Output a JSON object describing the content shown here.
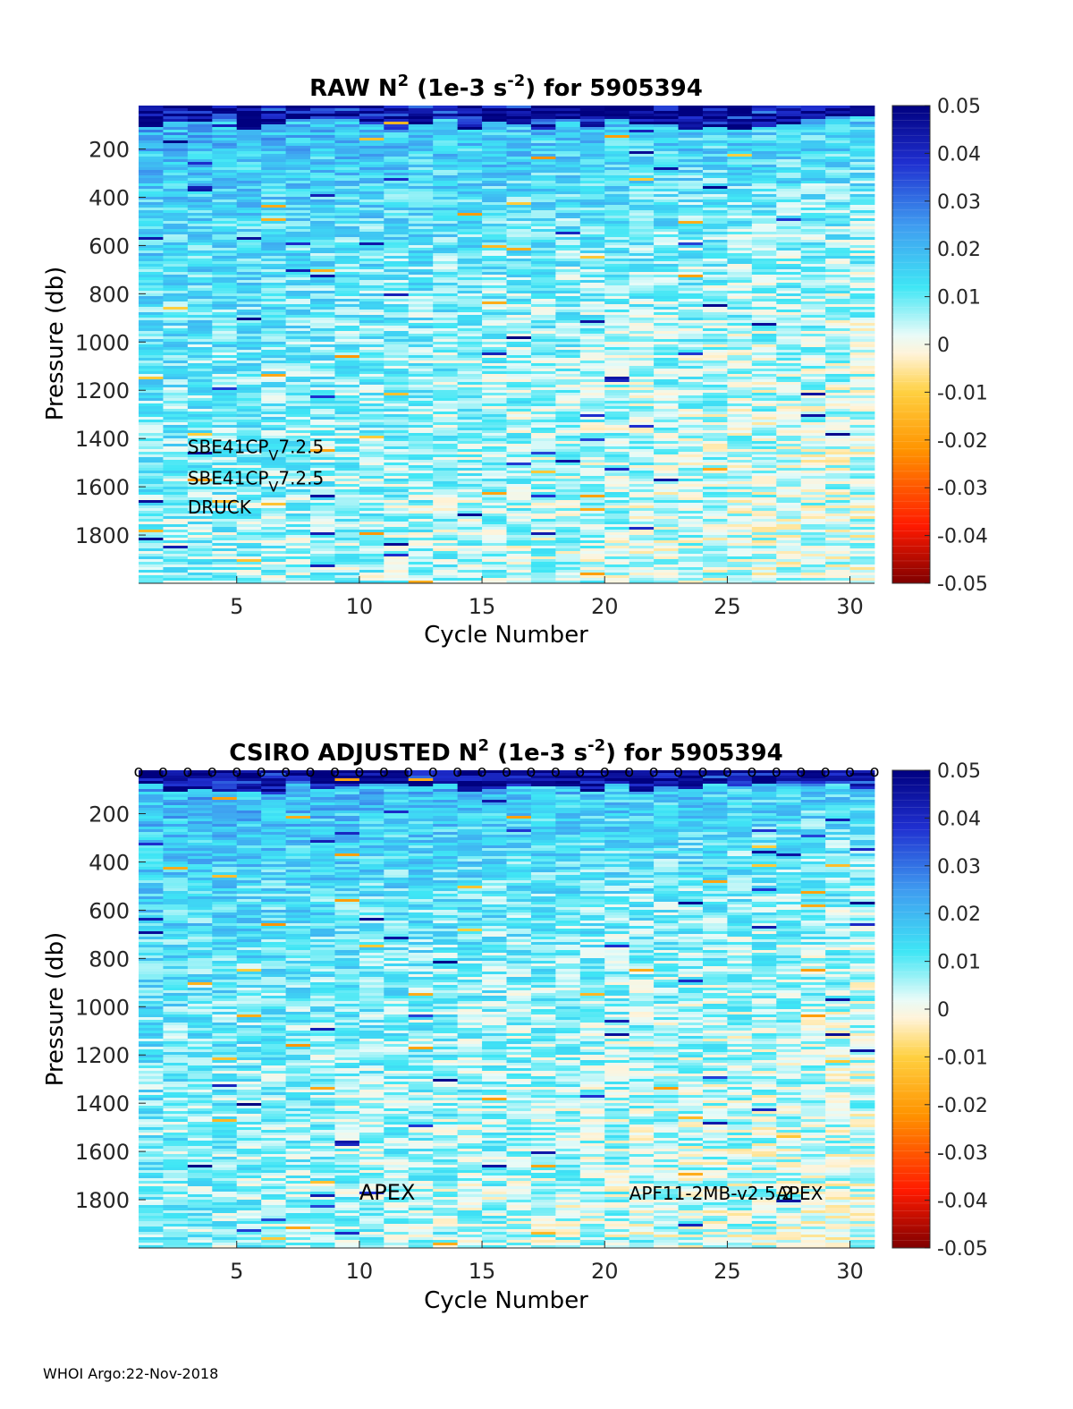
{
  "footer": "WHOI Argo:22-Nov-2018",
  "chart_data": [
    {
      "type": "heatmap",
      "title": {
        "prefix": "RAW N",
        "sup1": "2",
        "middle": " (1e-3 s",
        "sup2": "-2",
        "suffix": ") for 5905394"
      },
      "xlabel": "Cycle Number",
      "ylabel": "Pressure (db)",
      "xlim": [
        1,
        31
      ],
      "ylim": [
        2000,
        20
      ],
      "y_reversed": true,
      "xticks": [
        5,
        10,
        15,
        20,
        25,
        30
      ],
      "yticks": [
        200,
        400,
        600,
        800,
        1000,
        1200,
        1400,
        1600,
        1800
      ],
      "colorbar": {
        "clim": [
          -0.05,
          0.05
        ],
        "ticks": [
          "0.05",
          "0.04",
          "0.03",
          "0.02",
          "0.01",
          "0",
          "-0.01",
          "-0.02",
          "-0.03",
          "-0.04",
          "-0.05"
        ],
        "colormap": "jet-like diverging (dark red - yellow - white - cyan - dark blue)"
      },
      "cycles": 30,
      "annotations": [
        {
          "text": "SBE41CP",
          "sub": "V",
          "after": "7.2.5",
          "cycle": 3,
          "pressure": 1460
        },
        {
          "text": "SBE41CP",
          "sub": "V",
          "after": "7.2.5",
          "cycle": 3,
          "pressure": 1590
        },
        {
          "text": "DRUCK",
          "sub": "",
          "after": "",
          "cycle": 3,
          "pressure": 1710
        }
      ],
      "markers": []
    },
    {
      "type": "heatmap",
      "title": {
        "prefix": "CSIRO  ADJUSTED N",
        "sup1": "2",
        "middle": " (1e-3 s",
        "sup2": "-2",
        "suffix": ") for 5905394"
      },
      "xlabel": "Cycle Number",
      "ylabel": "Pressure (db)",
      "xlim": [
        1,
        31
      ],
      "ylim": [
        2000,
        20
      ],
      "y_reversed": true,
      "xticks": [
        5,
        10,
        15,
        20,
        25,
        30
      ],
      "yticks": [
        200,
        400,
        600,
        800,
        1000,
        1200,
        1400,
        1600,
        1800
      ],
      "colorbar": {
        "clim": [
          -0.05,
          0.05
        ],
        "ticks": [
          "0.05",
          "0.04",
          "0.03",
          "0.02",
          "0.01",
          "0",
          "-0.01",
          "-0.02",
          "-0.03",
          "-0.04",
          "-0.05"
        ],
        "colormap": "jet-like diverging (dark red - yellow - white - cyan - dark blue)"
      },
      "cycles": 30,
      "annotations": [
        {
          "text": "APEX",
          "sub": "",
          "after": "",
          "cycle": 10,
          "pressure": 1800,
          "large": true
        },
        {
          "text": "APF11-2MB-v2.5.2",
          "sub": "",
          "after": "",
          "cycle": 21,
          "pressure": 1800
        },
        {
          "text": "APEX",
          "sub": "",
          "after": "",
          "cycle": 27,
          "pressure": 1800
        }
      ],
      "markers": [
        {
          "symbol": "o",
          "cycles": [
            1,
            2,
            3,
            4,
            5,
            6,
            7,
            8,
            9,
            10,
            11,
            12,
            13,
            14,
            15,
            16,
            17,
            18,
            19,
            20,
            21,
            22,
            23,
            24,
            25,
            26,
            27,
            28,
            29,
            30,
            31
          ],
          "pressure": 20
        }
      ]
    }
  ]
}
